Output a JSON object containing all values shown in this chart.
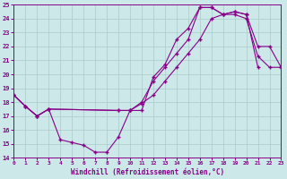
{
  "xlabel": "Windchill (Refroidissement éolien,°C)",
  "bg_color": "#cce8e8",
  "grid_color": "#aacccc",
  "line_color": "#880088",
  "xlim": [
    0,
    23
  ],
  "ylim": [
    14,
    25
  ],
  "xticks": [
    0,
    1,
    2,
    3,
    4,
    5,
    6,
    7,
    8,
    9,
    10,
    11,
    12,
    13,
    14,
    15,
    16,
    17,
    18,
    19,
    20,
    21,
    22,
    23
  ],
  "yticks": [
    14,
    15,
    16,
    17,
    18,
    19,
    20,
    21,
    22,
    23,
    24,
    25
  ],
  "line1_x": [
    0,
    1,
    2,
    3,
    4,
    5,
    6,
    7,
    8,
    9,
    10,
    11,
    12,
    13,
    14,
    15,
    16,
    17,
    18,
    19,
    20,
    21,
    22,
    23
  ],
  "line1_y": [
    18.5,
    17.7,
    17.0,
    17.5,
    15.3,
    15.1,
    14.9,
    14.4,
    14.4,
    15.5,
    17.4,
    17.4,
    19.8,
    20.7,
    22.5,
    23.3,
    24.8,
    24.8,
    24.3,
    24.3,
    24.0,
    21.3,
    20.5,
    20.5
  ],
  "line2_x": [
    0,
    1,
    2,
    3,
    9,
    10,
    11,
    12,
    13,
    14,
    15,
    16,
    17,
    18,
    19,
    20,
    21
  ],
  "line2_y": [
    18.5,
    17.7,
    17.0,
    17.5,
    17.4,
    17.4,
    18.0,
    19.5,
    20.5,
    21.5,
    22.5,
    24.8,
    24.8,
    24.3,
    24.5,
    24.3,
    20.5
  ],
  "line3_x": [
    0,
    1,
    2,
    3,
    9,
    10,
    11,
    12,
    13,
    14,
    15,
    16,
    17,
    18,
    19,
    20,
    21,
    22,
    23
  ],
  "line3_y": [
    18.5,
    17.7,
    17.0,
    17.5,
    17.4,
    17.4,
    17.9,
    18.5,
    19.5,
    20.5,
    21.5,
    22.5,
    24.0,
    24.3,
    24.5,
    24.3,
    22.0,
    22.0,
    20.5
  ]
}
